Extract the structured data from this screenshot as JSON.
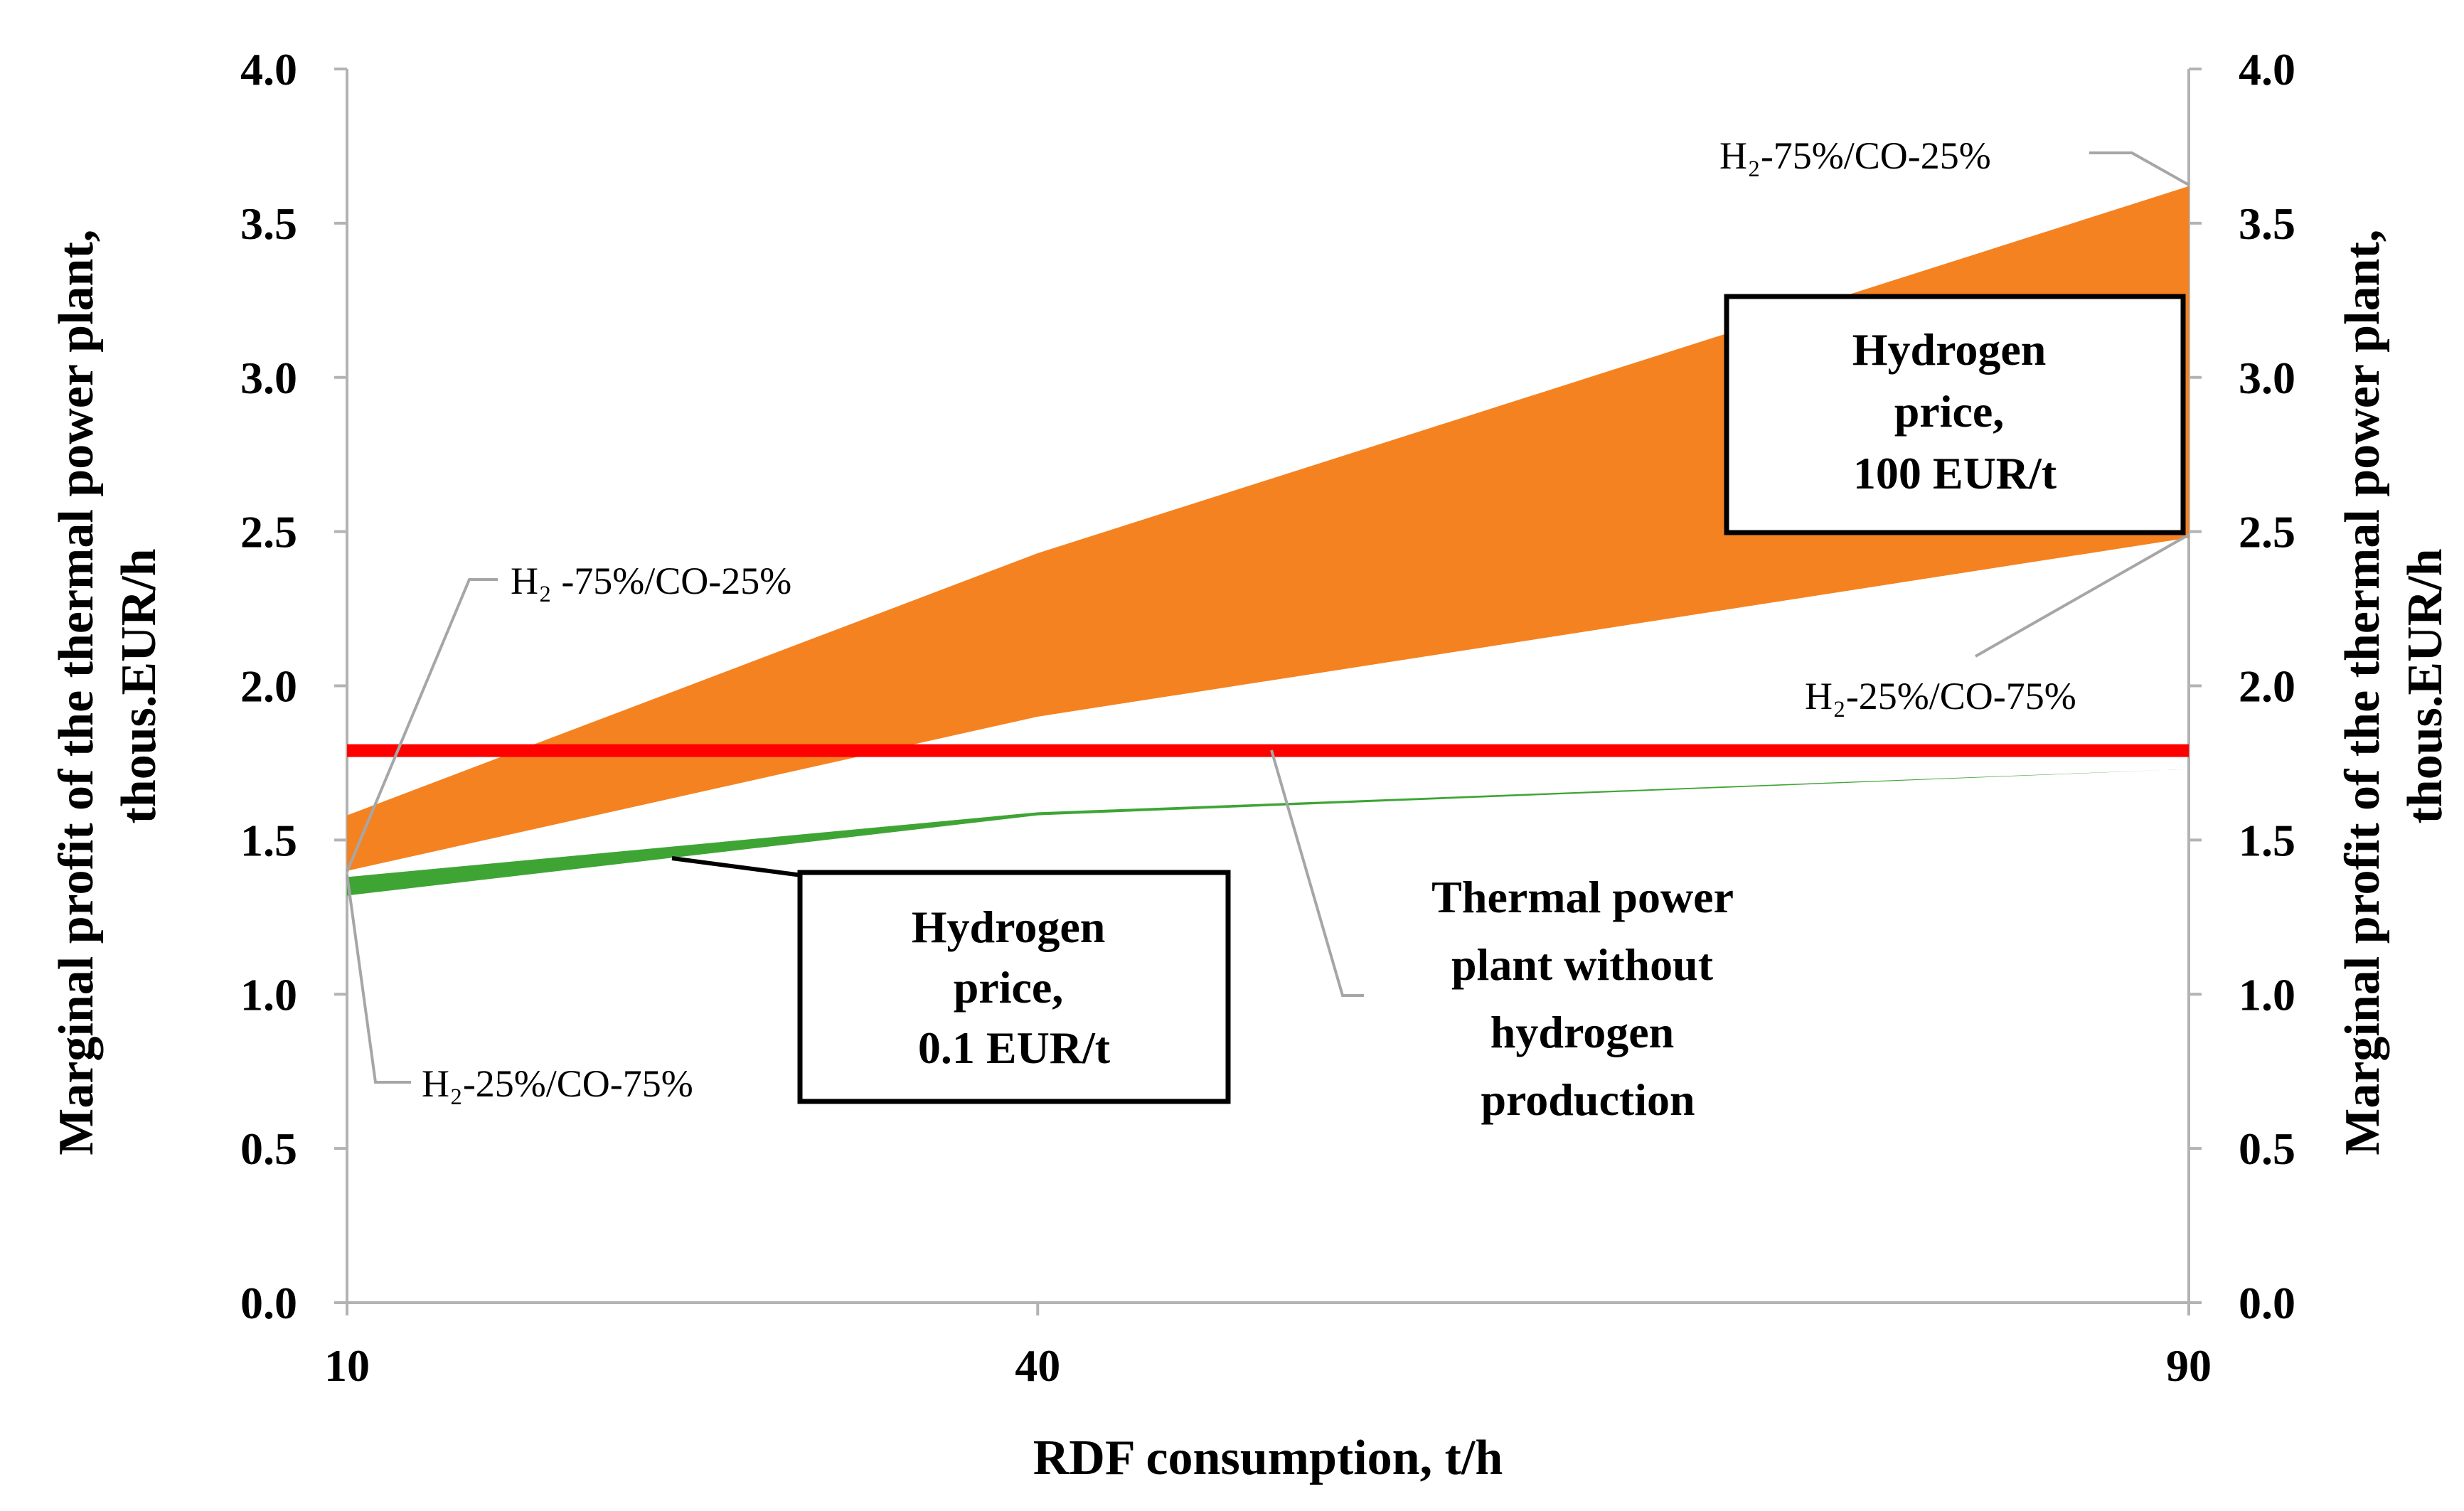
{
  "chart_data": {
    "type": "area",
    "title": "",
    "xlabel": "RDF consumption, t/h",
    "ylabel_left": "Marginal profit of the thermal power plant, thous.EUR/h",
    "ylabel_right": "Marginal profit of the thermal power plant, thous.EUR/h",
    "x": [
      10,
      40,
      90
    ],
    "x_tick_labels": [
      "10",
      "40",
      "90"
    ],
    "ylim": [
      0,
      4
    ],
    "y_tick_labels": [
      "0.0",
      "0.5",
      "1.0",
      "1.5",
      "2.0",
      "2.5",
      "3.0",
      "3.5",
      "4.0"
    ],
    "grid": false,
    "series": [
      {
        "name": "Hydrogen price 100 EUR/t, H2-75%/CO-25%",
        "values": [
          1.58,
          2.43,
          3.62
        ],
        "color": "#F58220"
      },
      {
        "name": "Hydrogen price 100 EUR/t, H2-25%/CO-75%",
        "values": [
          1.4,
          1.9,
          2.48
        ],
        "color": "#F58220"
      },
      {
        "name": "Hydrogen price 0.1 EUR/t, H2-75%/CO-25%",
        "values": [
          1.38,
          1.59,
          1.73
        ],
        "color": "#3EA535"
      },
      {
        "name": "Hydrogen price 0.1 EUR/t, H2-25%/CO-75%",
        "values": [
          1.32,
          1.58,
          1.73
        ],
        "color": "#3EA535"
      },
      {
        "name": "Thermal power plant without hydrogen production",
        "values": [
          1.79,
          1.79,
          1.79
        ],
        "color": "#FF0000"
      }
    ],
    "annotations": {
      "top_right_high": "H₂-75%/CO-25%",
      "right_low": "H₂-25%/CO-75%",
      "left_high": "H₂ -75%/CO-25%",
      "left_low": "H₂-25%/CO-75%"
    },
    "boxes": {
      "box_100": [
        "Hydrogen",
        "price,",
        "100 EUR/t"
      ],
      "box_01": [
        "Hydrogen",
        "price,",
        "0.1 EUR/t"
      ],
      "baseline_label": [
        "Thermal power",
        "plant without",
        "hydrogen",
        "production"
      ]
    }
  }
}
